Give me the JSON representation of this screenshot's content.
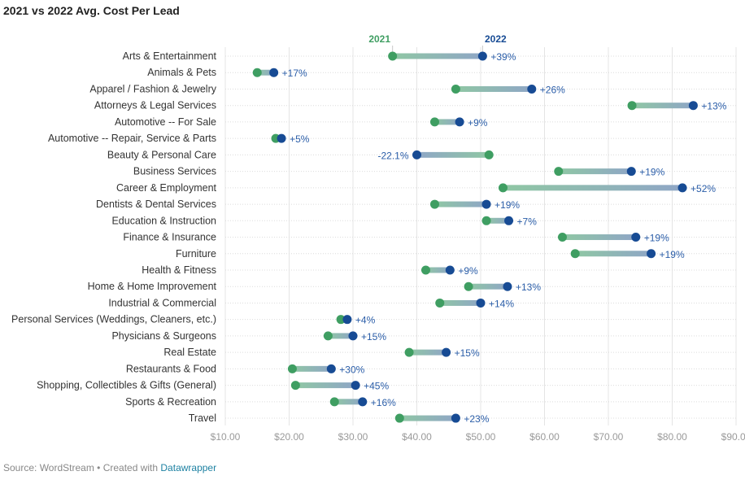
{
  "chart_data": {
    "type": "dot-range",
    "title": "2021 vs 2022 Avg. Cost Per Lead",
    "x_ticks": [
      "$10.00",
      "$20.00",
      "$30.00",
      "$40.00",
      "$50.00",
      "$60.00",
      "$70.00",
      "$80.00",
      "$90.00"
    ],
    "x_tick_values": [
      10,
      20,
      30,
      40,
      50,
      60,
      70,
      80,
      90
    ],
    "xlim": [
      10,
      90
    ],
    "grid": true,
    "series": [
      {
        "name": "2021",
        "color": "#3f9e62"
      },
      {
        "name": "2022",
        "color": "#174b94"
      }
    ],
    "categories": [
      "Arts & Entertainment",
      "Animals & Pets",
      "Apparel / Fashion & Jewelry",
      "Attorneys & Legal Services",
      "Automotive -- For Sale",
      "Automotive -- Repair, Service & Parts",
      "Beauty & Personal Care",
      "Business Services",
      "Career & Employment",
      "Dentists & Dental Services",
      "Education & Instruction",
      "Finance & Insurance",
      "Furniture",
      "Health & Fitness",
      "Home & Home Improvement",
      "Industrial & Commercial",
      "Personal Services (Weddings, Cleaners, etc.)",
      "Physicians & Surgeons",
      "Real Estate",
      "Restaurants & Food",
      "Shopping, Collectibles & Gifts (General)",
      "Sports & Recreation",
      "Travel"
    ],
    "values_2021": [
      36.2,
      15.0,
      46.1,
      73.7,
      42.8,
      17.9,
      51.3,
      62.2,
      53.5,
      42.8,
      50.9,
      62.8,
      64.8,
      41.4,
      48.1,
      43.6,
      28.1,
      26.1,
      38.8,
      20.5,
      21.0,
      27.1,
      37.3
    ],
    "values_2022": [
      50.3,
      17.6,
      58.0,
      83.3,
      46.7,
      18.8,
      40.0,
      73.6,
      81.6,
      50.9,
      54.4,
      74.3,
      76.7,
      45.2,
      54.2,
      50.0,
      29.1,
      30.0,
      44.6,
      26.6,
      30.4,
      31.5,
      46.1
    ],
    "change_labels": [
      "+39%",
      "+17%",
      "+26%",
      "+13%",
      "+9%",
      "+5%",
      "-22.1%",
      "+19%",
      "+52%",
      "+19%",
      "+7%",
      "+19%",
      "+19%",
      "+9%",
      "+13%",
      "+14%",
      "+4%",
      "+15%",
      "+15%",
      "+30%",
      "+45%",
      "+16%",
      "+23%"
    ],
    "source_text": "Source: WordStream • Created with ",
    "source_link": "Datawrapper"
  }
}
